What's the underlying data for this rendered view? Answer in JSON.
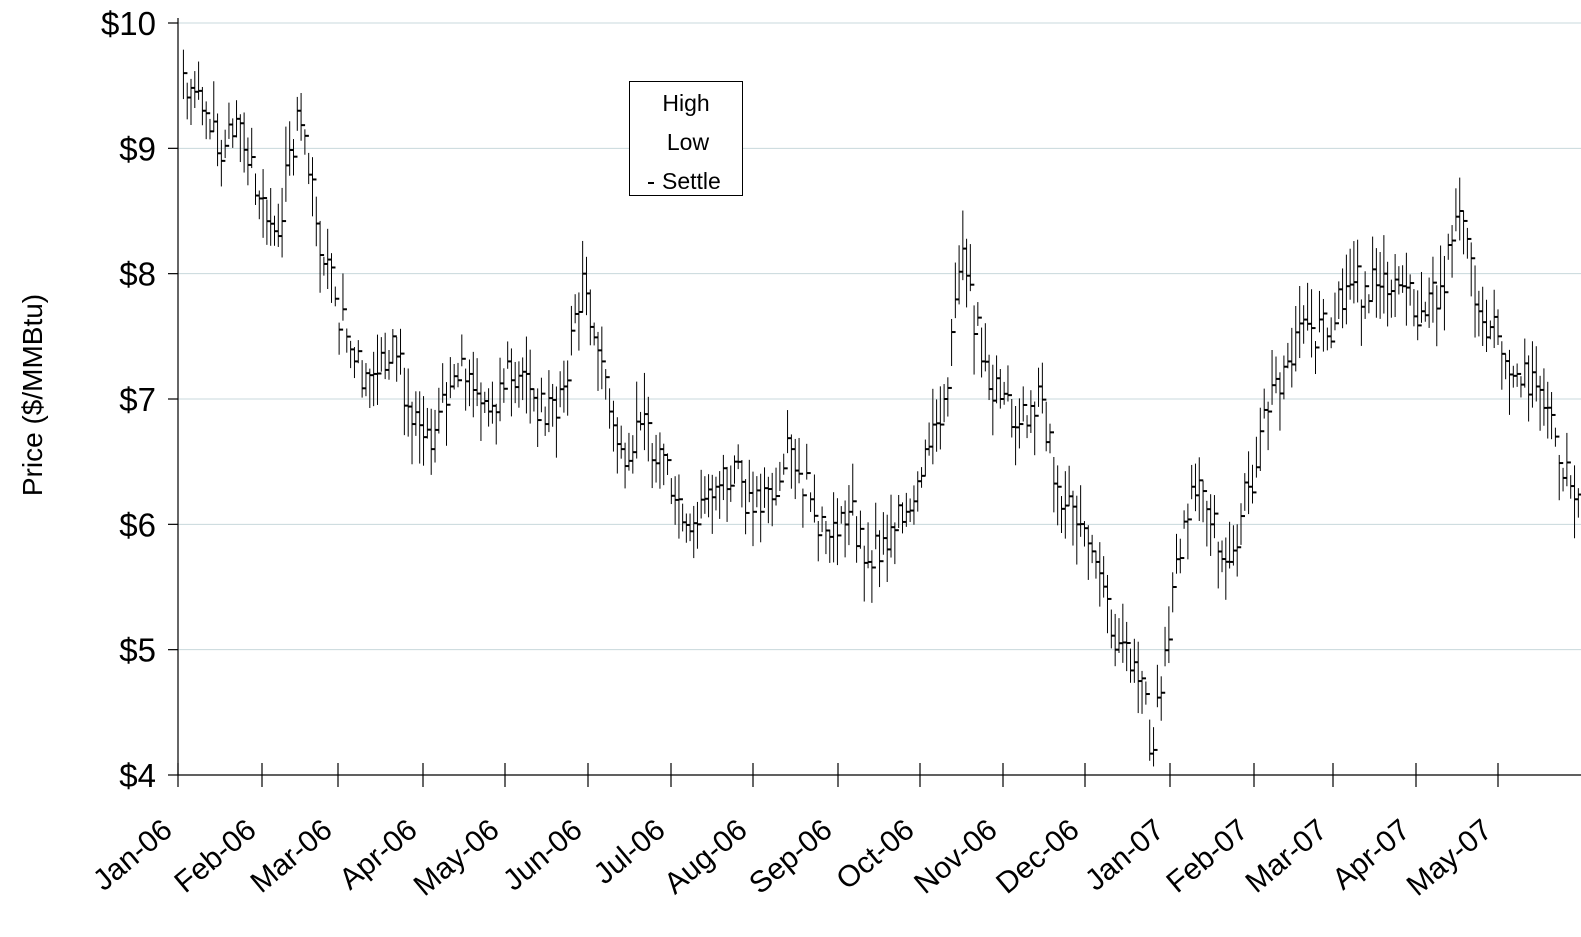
{
  "chart_data": {
    "type": "line",
    "subtype": "high-low-close (OHLC bars)",
    "title": "",
    "xlabel": "",
    "ylabel": "Price ($/MMBtu)",
    "ylim": [
      4,
      10
    ],
    "y_ticks": [
      "$4",
      "$5",
      "$6",
      "$7",
      "$8",
      "$9",
      "$10"
    ],
    "y_tick_values": [
      4,
      5,
      6,
      7,
      8,
      9,
      10
    ],
    "x_ticks": [
      "Jan-06",
      "Feb-06",
      "Mar-06",
      "Apr-06",
      "May-06",
      "Jun-06",
      "Jul-06",
      "Aug-06",
      "Sep-06",
      "Oct-06",
      "Nov-06",
      "Dec-06",
      "Jan-07",
      "Feb-07",
      "Mar-07",
      "Apr-07",
      "May-07"
    ],
    "grid": "horizontal",
    "legend": {
      "placement": "top-center",
      "entries": [
        "High",
        "Low",
        "Settle"
      ]
    },
    "series": [
      {
        "name": "Settle",
        "x": [
          "2006-01-03",
          "2006-01-10",
          "2006-01-17",
          "2006-01-24",
          "2006-01-31",
          "2006-02-07",
          "2006-02-14",
          "2006-02-21",
          "2006-02-28",
          "2006-03-07",
          "2006-03-14",
          "2006-03-21",
          "2006-03-28",
          "2006-04-04",
          "2006-04-11",
          "2006-04-18",
          "2006-04-25",
          "2006-05-02",
          "2006-05-09",
          "2006-05-16",
          "2006-05-23",
          "2006-05-30",
          "2006-06-06",
          "2006-06-13",
          "2006-06-20",
          "2006-06-27",
          "2006-07-04",
          "2006-07-11",
          "2006-07-18",
          "2006-07-25",
          "2006-08-01",
          "2006-08-08",
          "2006-08-15",
          "2006-08-22",
          "2006-08-29",
          "2006-09-05",
          "2006-09-12",
          "2006-09-19",
          "2006-09-26",
          "2006-10-03",
          "2006-10-10",
          "2006-10-17",
          "2006-10-24",
          "2006-10-31",
          "2006-11-07",
          "2006-11-14",
          "2006-11-21",
          "2006-11-28",
          "2006-12-05",
          "2006-12-12",
          "2006-12-19",
          "2006-12-26",
          "2007-01-02",
          "2007-01-09",
          "2007-01-16",
          "2007-01-23",
          "2007-01-30",
          "2007-02-06",
          "2007-02-13",
          "2007-02-20",
          "2007-02-27",
          "2007-03-06",
          "2007-03-13",
          "2007-03-20",
          "2007-03-27",
          "2007-04-03",
          "2007-04-10",
          "2007-04-17",
          "2007-04-24",
          "2007-05-01",
          "2007-05-08",
          "2007-05-15",
          "2007-05-22",
          "2007-05-29",
          "2007-06-05",
          "2007-06-12"
        ],
        "values": [
          9.6,
          9.3,
          8.9,
          9.2,
          8.6,
          8.3,
          9.3,
          8.4,
          7.8,
          7.3,
          7.2,
          7.5,
          6.8,
          6.6,
          7.1,
          7.2,
          6.9,
          7.3,
          7.2,
          6.8,
          7.1,
          8.0,
          7.3,
          6.6,
          6.8,
          6.6,
          6.2,
          6.0,
          6.3,
          6.5,
          6.1,
          6.2,
          6.6,
          6.2,
          5.9,
          6.1,
          5.7,
          5.8,
          6.1,
          6.6,
          7.0,
          8.2,
          7.3,
          7.0,
          6.8,
          7.1,
          6.3,
          6.0,
          5.7,
          5.0,
          4.9,
          4.2,
          5.5,
          6.3,
          6.0,
          5.7,
          6.3,
          6.9,
          7.3,
          7.6,
          7.5,
          7.9,
          7.9,
          8.0,
          7.9,
          7.7,
          7.9,
          8.5,
          7.7,
          7.5,
          7.2,
          7.1,
          6.7,
          6.2,
          6.1,
          6.2
        ]
      }
    ]
  }
}
